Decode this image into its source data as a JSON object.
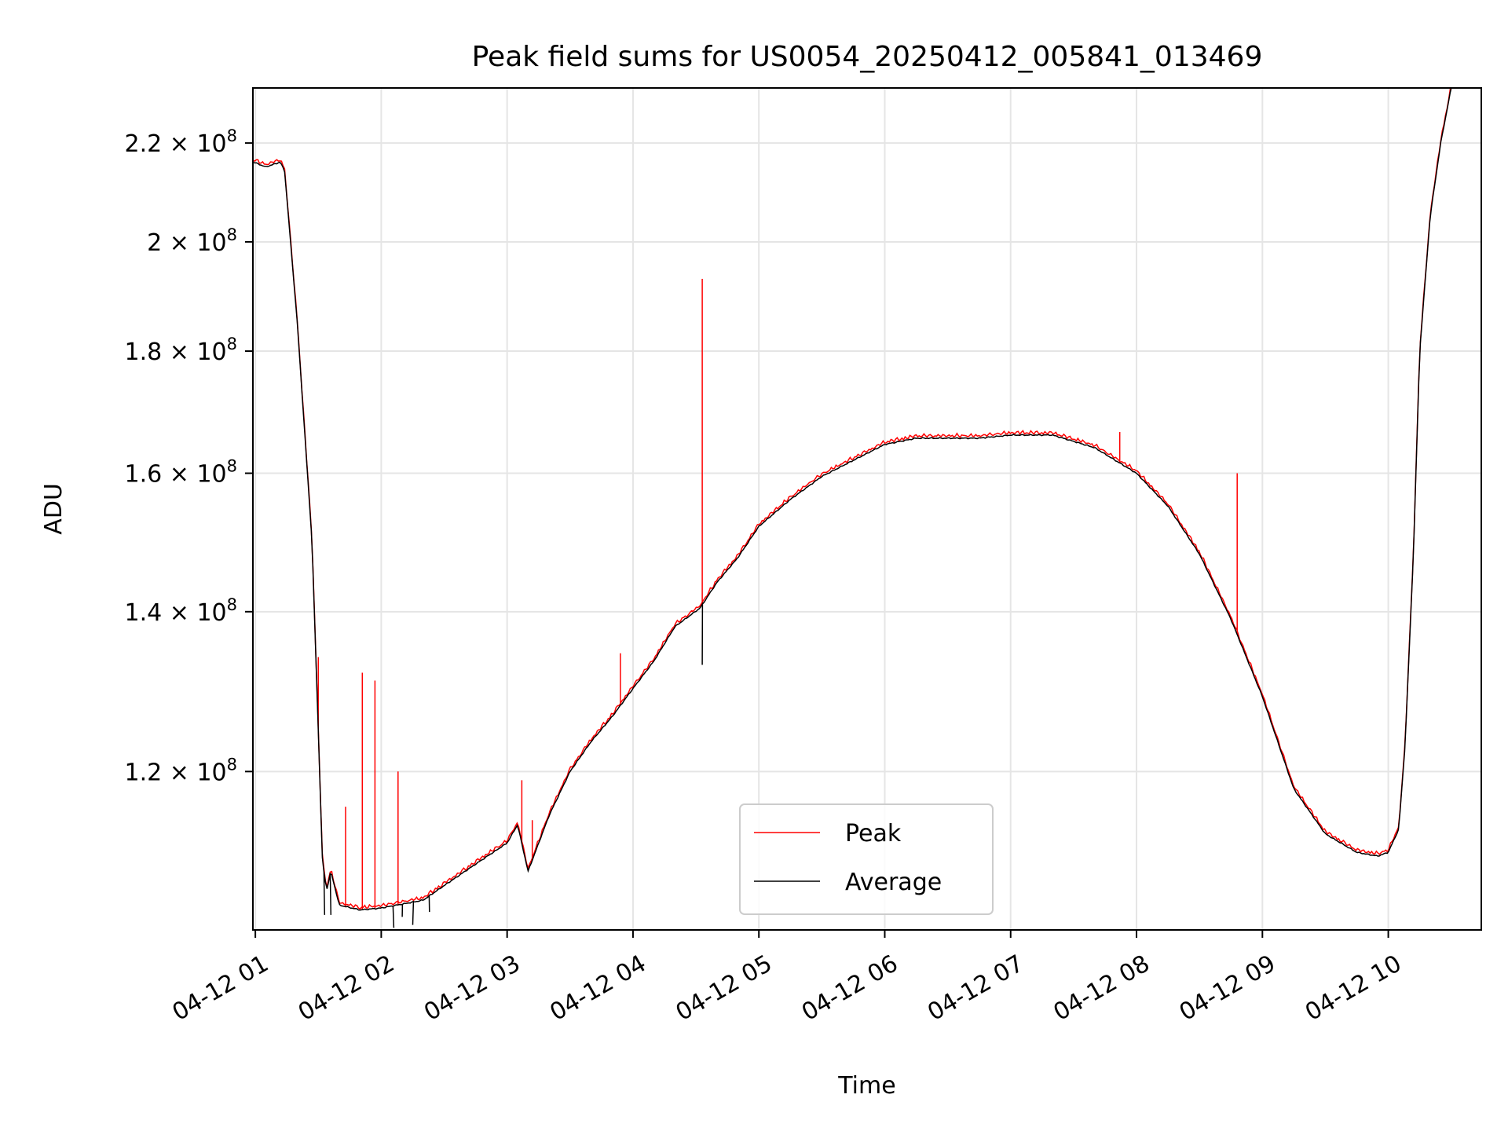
{
  "chart_data": {
    "type": "line",
    "title": "Peak field sums for US0054_20250412_005841_013469",
    "xlabel": "Time",
    "ylabel": "ADU",
    "y_scale": "log",
    "ylim": [
      103000000,
      232000000
    ],
    "xlim": [
      "2025-04-12 00:58:50",
      "2025-04-12 10:44:20"
    ],
    "x_ticks": [
      "2025-04-12 01:00",
      "2025-04-12 02:00",
      "2025-04-12 03:00",
      "2025-04-12 04:00",
      "2025-04-12 05:00",
      "2025-04-12 06:00",
      "2025-04-12 07:00",
      "2025-04-12 08:00",
      "2025-04-12 09:00",
      "2025-04-12 10:00"
    ],
    "x_tick_labels": [
      "04-12 01",
      "04-12 02",
      "04-12 03",
      "04-12 04",
      "04-12 05",
      "04-12 06",
      "04-12 07",
      "04-12 08",
      "04-12 09",
      "04-12 10"
    ],
    "y_ticks": [
      {
        "mantissa": "1.2",
        "exponent": "8",
        "value": 120000000
      },
      {
        "mantissa": "1.4",
        "exponent": "8",
        "value": 140000000
      },
      {
        "mantissa": "1.6",
        "exponent": "8",
        "value": 160000000
      },
      {
        "mantissa": "1.8",
        "exponent": "8",
        "value": 180000000
      },
      {
        "mantissa": "2",
        "exponent": "8",
        "value": 200000000
      },
      {
        "mantissa": "2.2",
        "exponent": "8",
        "value": 220000000
      }
    ],
    "grid": true,
    "legend_position": "bottom-center",
    "series": [
      {
        "name": "Peak",
        "color": "#ff0000"
      },
      {
        "name": "Average",
        "color": "#000000"
      }
    ],
    "x": [
      "2025-04-12 00:59",
      "2025-04-12 01:05",
      "2025-04-12 01:12",
      "2025-04-12 01:14",
      "2025-04-12 01:20",
      "2025-04-12 01:27",
      "2025-04-12 01:30",
      "2025-04-12 01:32",
      "2025-04-12 01:34",
      "2025-04-12 01:36",
      "2025-04-12 01:40",
      "2025-04-12 01:50",
      "2025-04-12 02:00",
      "2025-04-12 02:10",
      "2025-04-12 02:20",
      "2025-04-12 02:30",
      "2025-04-12 02:40",
      "2025-04-12 02:50",
      "2025-04-12 03:00",
      "2025-04-12 03:05",
      "2025-04-12 03:10",
      "2025-04-12 03:20",
      "2025-04-12 03:30",
      "2025-04-12 03:40",
      "2025-04-12 03:50",
      "2025-04-12 04:00",
      "2025-04-12 04:10",
      "2025-04-12 04:20",
      "2025-04-12 04:32",
      "2025-04-12 04:40",
      "2025-04-12 04:50",
      "2025-04-12 05:00",
      "2025-04-12 05:15",
      "2025-04-12 05:30",
      "2025-04-12 05:45",
      "2025-04-12 06:00",
      "2025-04-12 06:15",
      "2025-04-12 06:30",
      "2025-04-12 06:45",
      "2025-04-12 07:00",
      "2025-04-12 07:10",
      "2025-04-12 07:20",
      "2025-04-12 07:30",
      "2025-04-12 07:40",
      "2025-04-12 08:00",
      "2025-04-12 08:15",
      "2025-04-12 08:30",
      "2025-04-12 08:45",
      "2025-04-12 09:00",
      "2025-04-12 09:15",
      "2025-04-12 09:30",
      "2025-04-12 09:45",
      "2025-04-12 09:55",
      "2025-04-12 10:00",
      "2025-04-12 10:05",
      "2025-04-12 10:08",
      "2025-04-12 10:12",
      "2025-04-12 10:15",
      "2025-04-12 10:20",
      "2025-04-12 10:25",
      "2025-04-12 10:30",
      "2025-04-12 10:34"
    ],
    "average": [
      216000000,
      215000000,
      216000000,
      214000000,
      185000000,
      150000000,
      125000000,
      110000000,
      107000000,
      109000000,
      105500000,
      105000000,
      105200000,
      105600000,
      106000000,
      107500000,
      109000000,
      110500000,
      112000000,
      114000000,
      109000000,
      115000000,
      120000000,
      123500000,
      126500000,
      130000000,
      133500000,
      138000000,
      140500000,
      144000000,
      147500000,
      152000000,
      156000000,
      159500000,
      162000000,
      164500000,
      165500000,
      165500000,
      165500000,
      166000000,
      166000000,
      166000000,
      165000000,
      164000000,
      160000000,
      155000000,
      148000000,
      139000000,
      129000000,
      118000000,
      113000000,
      111000000,
      110600000,
      111000000,
      113500000,
      123000000,
      148000000,
      180000000,
      205000000,
      220000000,
      232000000,
      240000000
    ],
    "peak_spikes": [
      {
        "x": "2025-04-12 01:30",
        "value": 134000000
      },
      {
        "x": "2025-04-12 01:43",
        "value": 116000000
      },
      {
        "x": "2025-04-12 01:51",
        "value": 132000000
      },
      {
        "x": "2025-04-12 01:57",
        "value": 131000000
      },
      {
        "x": "2025-04-12 02:08",
        "value": 120000000
      },
      {
        "x": "2025-04-12 03:07",
        "value": 119000000
      },
      {
        "x": "2025-04-12 03:12",
        "value": 114500000
      },
      {
        "x": "2025-04-12 03:54",
        "value": 134500000
      },
      {
        "x": "2025-04-12 04:33",
        "value": 193000000
      },
      {
        "x": "2025-04-12 07:52",
        "value": 166500000
      },
      {
        "x": "2025-04-12 08:48",
        "value": 160000000
      }
    ],
    "average_dips": [
      {
        "x": "2025-04-12 01:33",
        "value": 104500000
      },
      {
        "x": "2025-04-12 01:36",
        "value": 104500000
      },
      {
        "x": "2025-04-12 02:06",
        "value": 103200000
      },
      {
        "x": "2025-04-12 02:10",
        "value": 104300000
      },
      {
        "x": "2025-04-12 02:15",
        "value": 103500000
      },
      {
        "x": "2025-04-12 02:23",
        "value": 104800000
      },
      {
        "x": "2025-04-12 04:33",
        "value": 133000000
      }
    ]
  }
}
